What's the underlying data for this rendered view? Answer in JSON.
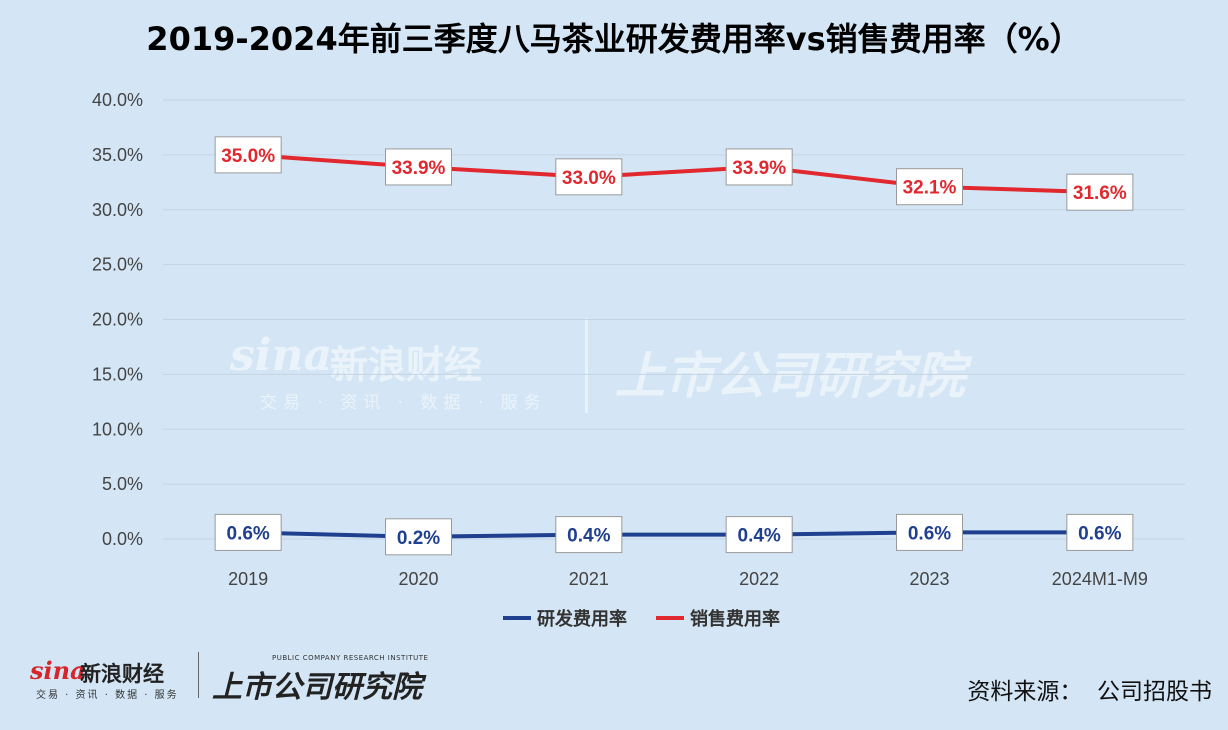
{
  "title": "2019-2024年前三季度八马茶业研发费用率vs销售费用率（%）",
  "source": "资料来源：  公司招股书",
  "logo": {
    "sina_word": "sina",
    "sina_cn": "新浪财经",
    "sina_sub": "交易 · 资讯 · 数据 · 服务",
    "research_en": "PUBLIC COMPANY RESEARCH INSTITUTE",
    "research_cn": "上市公司研究院"
  },
  "colors": {
    "background": "#d4e6f5",
    "rd_series": "#1f3f8f",
    "sales_series": "#e0282e",
    "grid": "#c3d3e2"
  },
  "chart_data": {
    "type": "line",
    "categories": [
      "2019",
      "2020",
      "2021",
      "2022",
      "2023",
      "2024M1-M9"
    ],
    "series": [
      {
        "name": "研发费用率",
        "values": [
          0.6,
          0.2,
          0.4,
          0.4,
          0.6,
          0.6
        ],
        "labels": [
          "0.6%",
          "0.2%",
          "0.4%",
          "0.4%",
          "0.6%",
          "0.6%"
        ],
        "color": "#1f3f8f"
      },
      {
        "name": "销售费用率",
        "values": [
          35.0,
          33.9,
          33.0,
          33.9,
          32.1,
          31.6
        ],
        "labels": [
          "35.0%",
          "33.9%",
          "33.0%",
          "33.9%",
          "32.1%",
          "31.6%"
        ],
        "color": "#e0282e"
      }
    ],
    "y_ticks": [
      "0.0%",
      "5.0%",
      "10.0%",
      "15.0%",
      "20.0%",
      "25.0%",
      "30.0%",
      "35.0%",
      "40.0%"
    ],
    "ylim": [
      0,
      40
    ],
    "grid": true,
    "legend_position": "bottom"
  }
}
